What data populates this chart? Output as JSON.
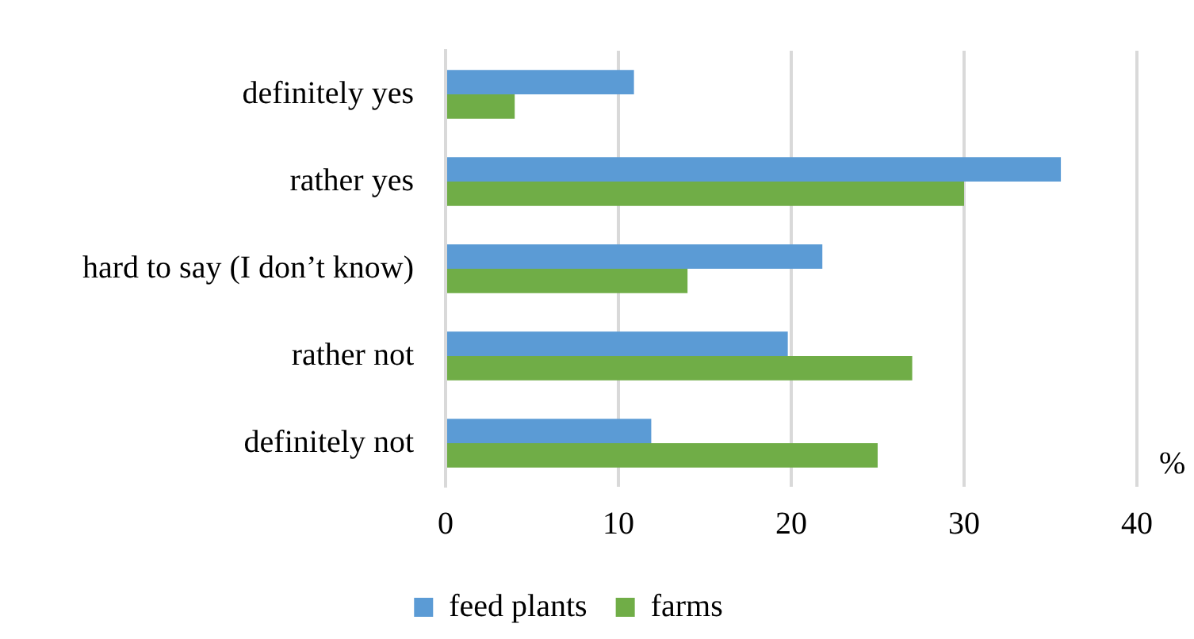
{
  "chart_data": {
    "type": "bar",
    "orientation": "horizontal",
    "xlabel": "%",
    "categories": [
      "definitely yes",
      "rather yes",
      "hard to say (I don’t know)",
      "rather not",
      "definitely not"
    ],
    "series": [
      {
        "name": "feed plants",
        "color": "#5b9bd5",
        "values": [
          10.9,
          35.6,
          21.8,
          19.8,
          11.9
        ]
      },
      {
        "name": "farms",
        "color": "#70ad47",
        "values": [
          4.0,
          30.0,
          14.0,
          27.0,
          25.0
        ]
      }
    ],
    "xlim": [
      0,
      40
    ],
    "xticks": [
      0,
      10,
      20,
      30,
      40
    ],
    "grid": "x",
    "legend": "bottom"
  }
}
